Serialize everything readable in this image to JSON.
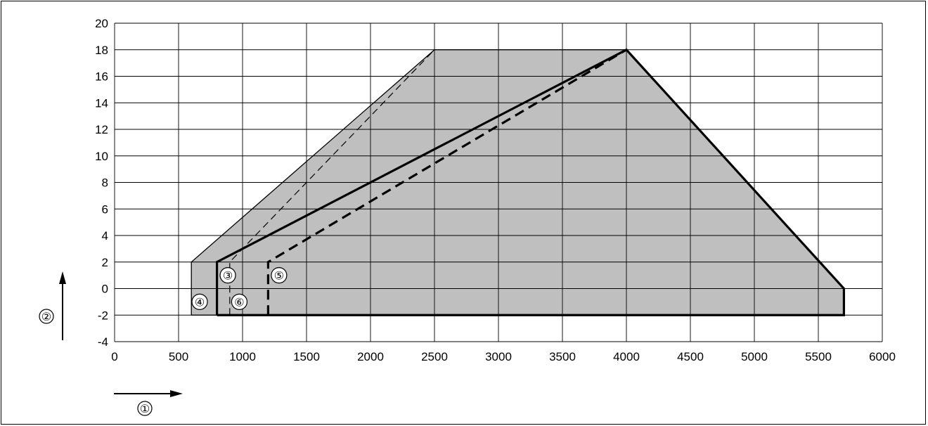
{
  "chart_data": {
    "type": "area",
    "title": "",
    "xlabel": "①",
    "ylabel": "②",
    "xlim": [
      0,
      6000
    ],
    "ylim": [
      -4,
      20
    ],
    "x_ticks": [
      0,
      500,
      1000,
      1500,
      2000,
      2500,
      3000,
      3500,
      4000,
      4500,
      5000,
      5500,
      6000
    ],
    "y_ticks": [
      -4,
      -2,
      0,
      2,
      4,
      6,
      8,
      10,
      12,
      14,
      16,
      18,
      20
    ],
    "grid": true,
    "legend": "none",
    "fill_color": "#bfbfbf",
    "line_color": "#000000",
    "series": [
      {
        "name": "④",
        "style": "thin-solid",
        "fill": true,
        "points": [
          [
            600,
            -2
          ],
          [
            600,
            2
          ],
          [
            2500,
            18
          ],
          [
            4000,
            18
          ],
          [
            5700,
            0
          ],
          [
            5700,
            -2
          ],
          [
            600,
            -2
          ]
        ]
      },
      {
        "name": "③",
        "style": "thick-solid",
        "fill": false,
        "points": [
          [
            800,
            -2
          ],
          [
            800,
            2
          ],
          [
            4000,
            18
          ],
          [
            5700,
            0
          ],
          [
            5700,
            -2
          ],
          [
            800,
            -2
          ]
        ]
      },
      {
        "name": "⑤",
        "style": "thick-dashed",
        "fill": false,
        "points": [
          [
            1200,
            -2
          ],
          [
            1200,
            2
          ],
          [
            4000,
            18
          ]
        ]
      },
      {
        "name": "⑥",
        "style": "thin-dashed",
        "fill": false,
        "points": [
          [
            900,
            -2
          ],
          [
            900,
            2
          ],
          [
            2500,
            18
          ]
        ]
      }
    ],
    "annotations": [
      {
        "label": "③",
        "x": 830,
        "y": 1.0
      },
      {
        "label": "④",
        "x": 610,
        "y": -1.0
      },
      {
        "label": "⑤",
        "x": 1230,
        "y": 1.0
      },
      {
        "label": "⑥",
        "x": 920,
        "y": -1.0
      }
    ]
  }
}
